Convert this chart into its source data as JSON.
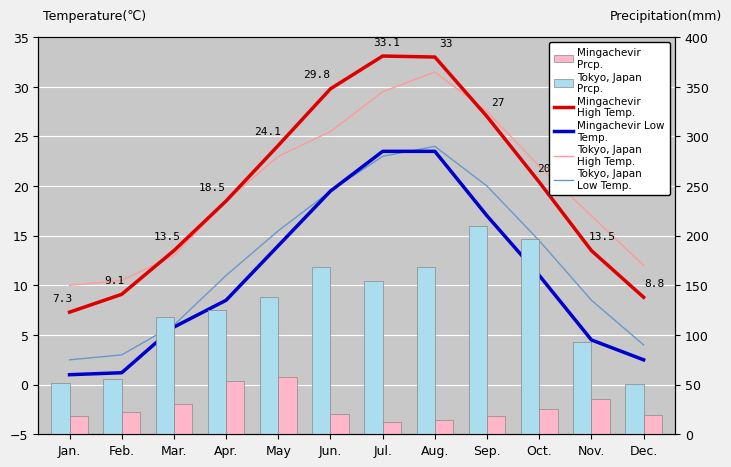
{
  "months": [
    "Jan.",
    "Feb.",
    "Mar.",
    "Apr.",
    "May",
    "Jun.",
    "Jul.",
    "Aug.",
    "Sep.",
    "Oct.",
    "Nov.",
    "Dec."
  ],
  "mingachevir_high": [
    7.3,
    9.1,
    13.5,
    18.5,
    24.1,
    29.8,
    33.1,
    33.0,
    27.0,
    20.4,
    13.5,
    8.8
  ],
  "mingachevir_low": [
    1.0,
    1.2,
    5.8,
    8.5,
    14.0,
    19.5,
    23.5,
    23.5,
    17.0,
    11.0,
    4.5,
    2.5
  ],
  "tokyo_high": [
    10.0,
    10.5,
    13.0,
    18.5,
    23.0,
    25.5,
    29.5,
    31.5,
    27.5,
    22.0,
    17.0,
    12.0
  ],
  "tokyo_low": [
    2.5,
    3.0,
    6.0,
    11.0,
    15.5,
    19.5,
    23.0,
    24.0,
    20.0,
    14.5,
    8.5,
    4.0
  ],
  "tokyo_prcp_mm": [
    52,
    56,
    118,
    125,
    138,
    168,
    154,
    168,
    210,
    197,
    93,
    51
  ],
  "mingachevir_prcp_mm": [
    18,
    22,
    31,
    54,
    58,
    20,
    12,
    14,
    18,
    25,
    36,
    19
  ],
  "temp_ylim": [
    -5,
    35
  ],
  "prcp_ylim": [
    0,
    400
  ],
  "bg_color": "#c8c8c8",
  "mingachevir_bar_color": "#ffb6c8",
  "tokyo_bar_color": "#aaddee",
  "mingachevir_high_color": "#dd0000",
  "mingachevir_low_color": "#0000cc",
  "tokyo_high_color": "#ff9999",
  "tokyo_low_color": "#6699cc",
  "title_left": "Temperature(℃)",
  "title_right": "Precipitation(mm)",
  "labels_str": [
    "7.3",
    "9.1",
    "13.5",
    "18.5",
    "24.1",
    "29.8",
    "33.1",
    "33",
    "27",
    "20.4",
    "13.5",
    "8.8"
  ],
  "label_offsets_x": [
    -5,
    -5,
    -5,
    -10,
    -8,
    -10,
    3,
    8,
    8,
    8,
    8,
    8
  ],
  "label_offsets_y": [
    8,
    8,
    8,
    8,
    8,
    8,
    8,
    8,
    8,
    8,
    8,
    8
  ]
}
